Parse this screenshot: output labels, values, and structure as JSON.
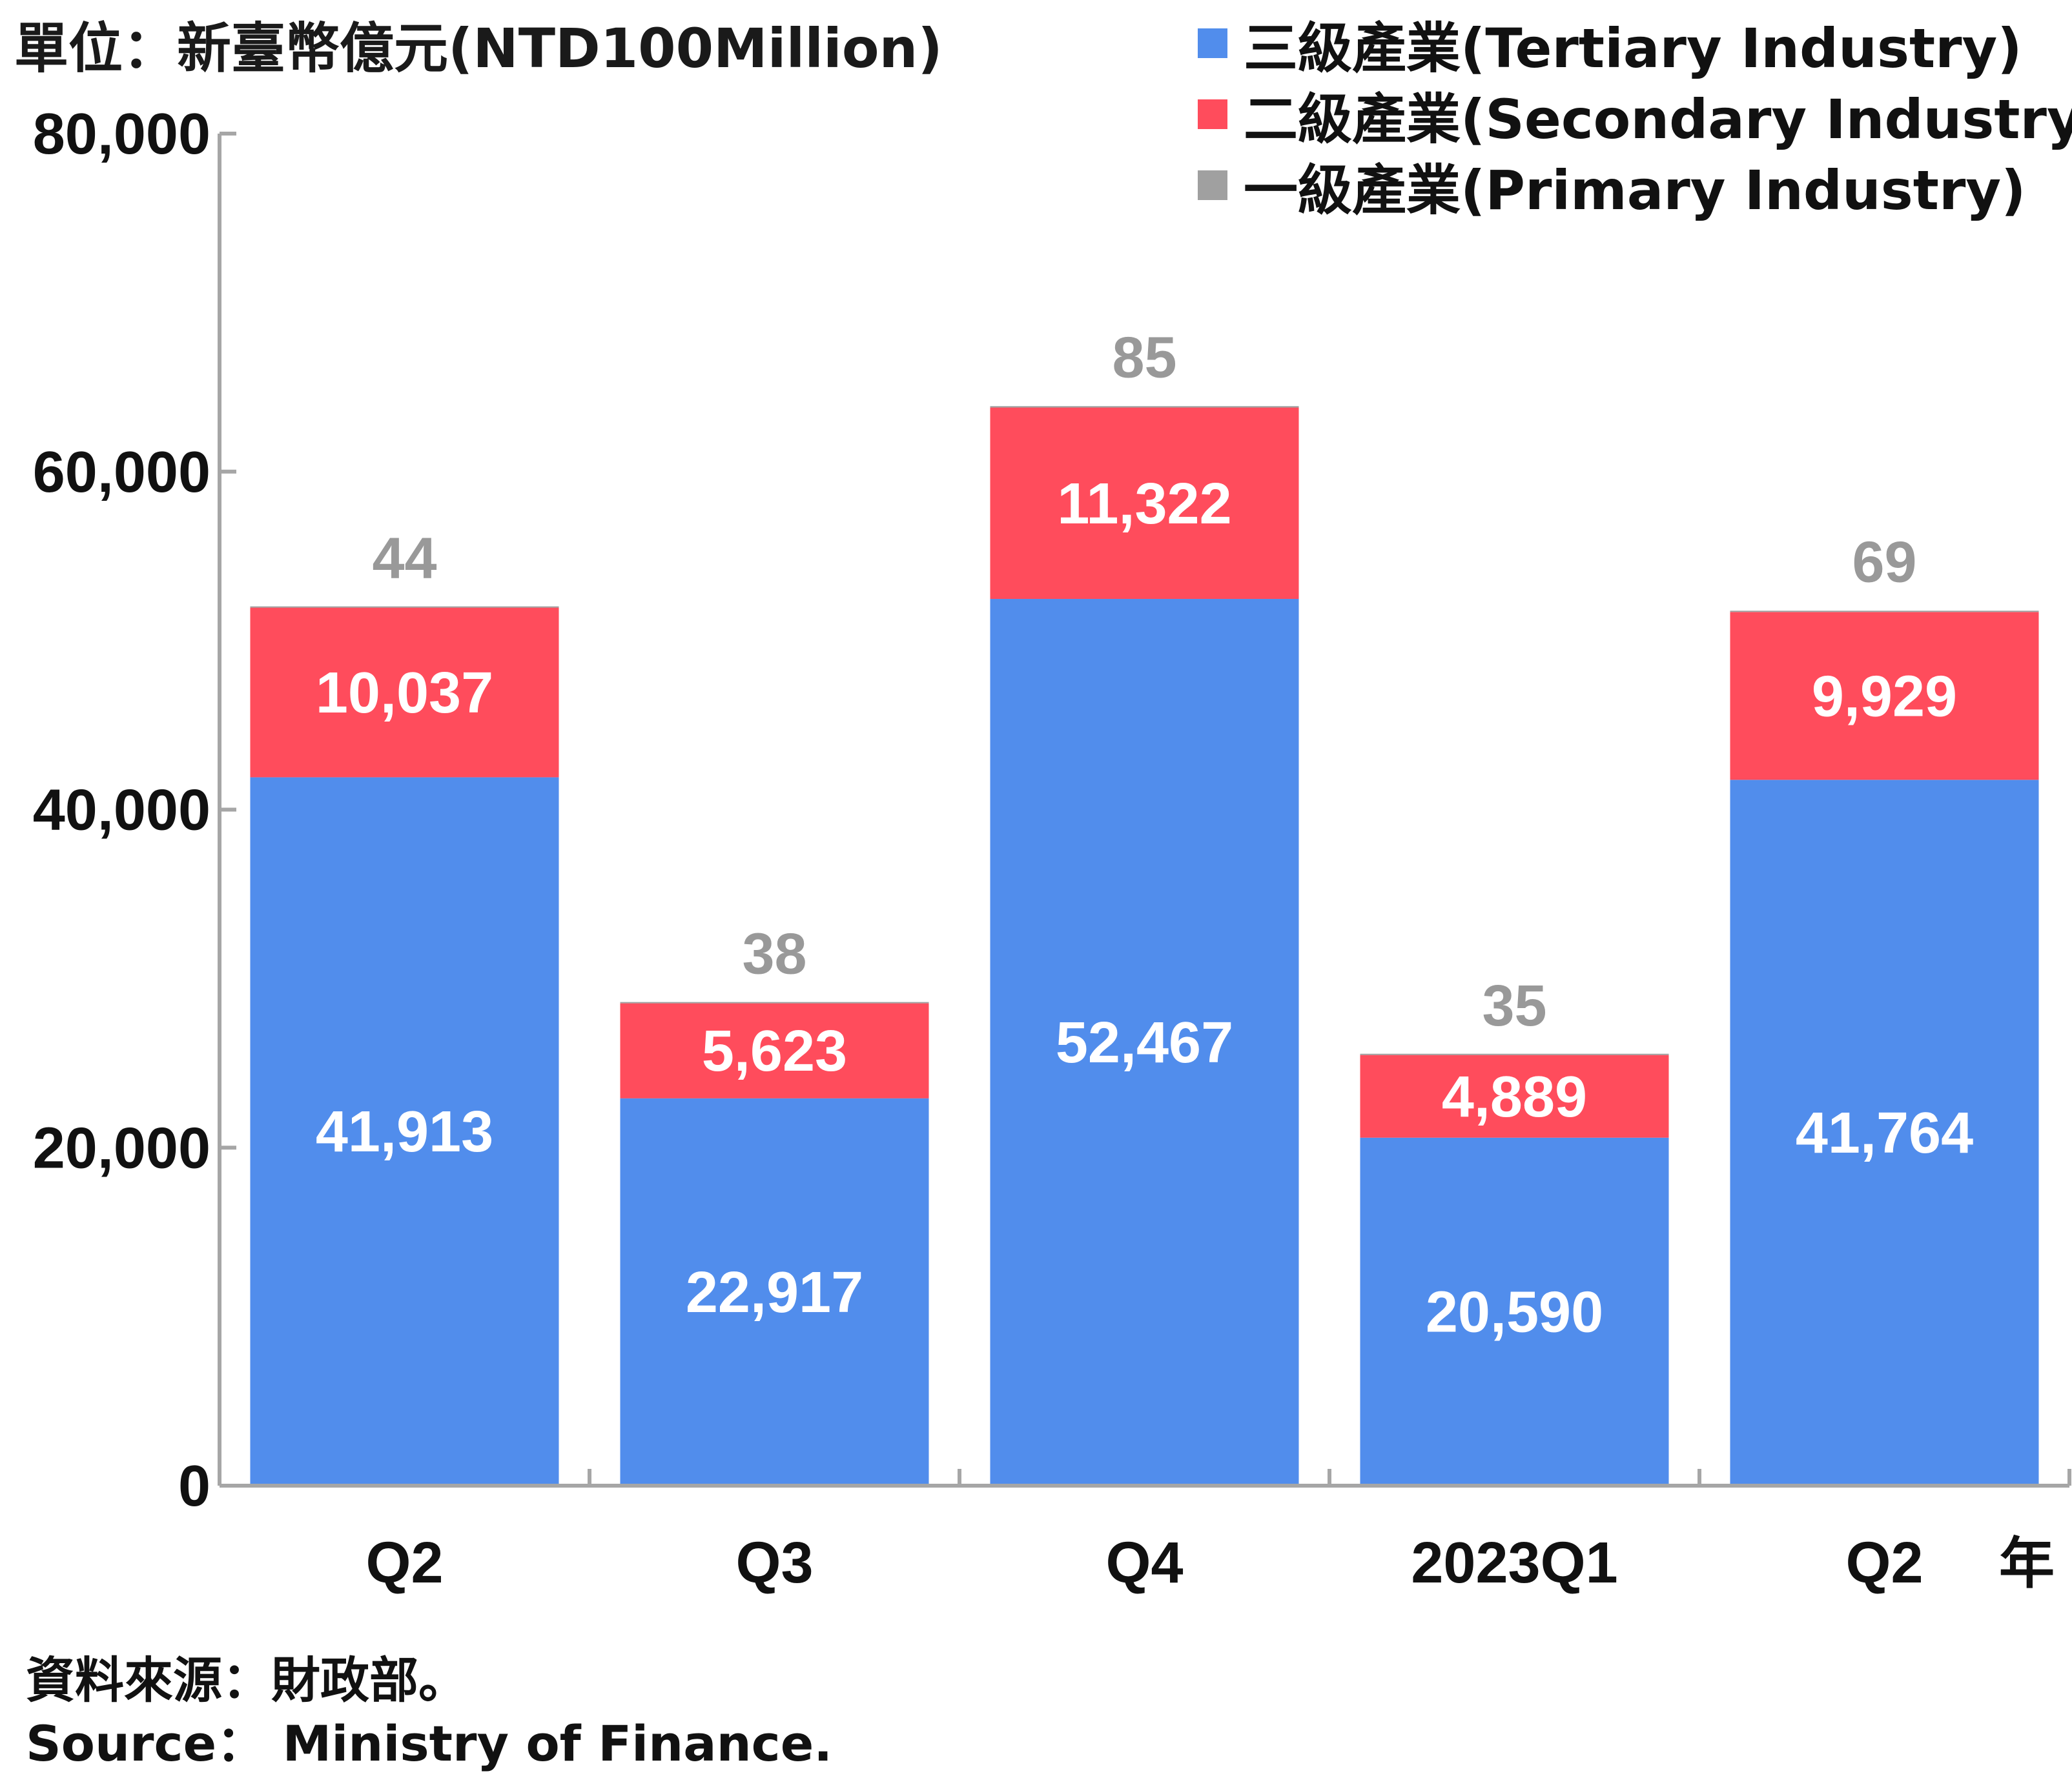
{
  "unit_label": "單位：新臺幣億元(NTD100Million)",
  "legend": [
    {
      "label": "三級產業(Tertiary Industry)",
      "color": "#518DEC"
    },
    {
      "label": "二級產業(Secondary Industry)",
      "color": "#FF4C5C"
    },
    {
      "label": "一級產業(Primary Industry)",
      "color": "#A0A0A0"
    }
  ],
  "year_label": "年",
  "source": {
    "zh": "資料來源：財政部。",
    "en": "Source： Ministry of Finance."
  },
  "chart_data": {
    "type": "bar",
    "stacked": true,
    "categories": [
      "Q2",
      "Q3",
      "Q4",
      "2023Q1",
      "Q2"
    ],
    "series": [
      {
        "name": "三級產業(Tertiary Industry)",
        "color": "#518DEC",
        "values": [
          41913,
          22917,
          52467,
          20590,
          41764
        ],
        "labels": [
          "41,913",
          "22,917",
          "52,467",
          "20,590",
          "41,764"
        ]
      },
      {
        "name": "二級產業(Secondary Industry)",
        "color": "#FF4C5C",
        "values": [
          10037,
          5623,
          11322,
          4889,
          9929
        ],
        "labels": [
          "10,037",
          "5,623",
          "11,322",
          "4,889",
          "9,929"
        ]
      },
      {
        "name": "一級產業(Primary Industry)",
        "color": "#A0A0A0",
        "values": [
          44,
          38,
          85,
          35,
          69
        ],
        "labels": [
          "44",
          "38",
          "85",
          "35",
          "69"
        ]
      }
    ],
    "ylim": [
      0,
      80000
    ],
    "yticks": [
      0,
      20000,
      40000,
      60000,
      80000
    ],
    "ytick_labels": [
      "0",
      "20,000",
      "40,000",
      "60,000",
      "80,000"
    ],
    "grid": false,
    "legend_position": "top-right"
  }
}
